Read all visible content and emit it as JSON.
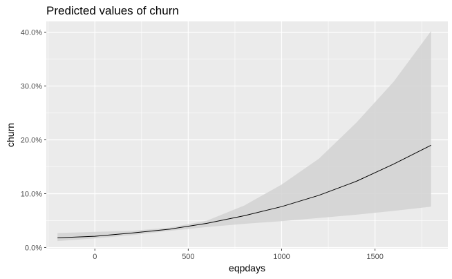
{
  "chart_data": {
    "type": "line",
    "title": "Predicted values of churn",
    "xlabel": "eqpdays",
    "ylabel": "churn",
    "xlim": [
      -260,
      1890
    ],
    "ylim": [
      -0.002,
      0.42
    ],
    "x_ticks": [
      0,
      500,
      1000,
      1500
    ],
    "x_tick_labels": [
      "0",
      "500",
      "1000",
      "1500"
    ],
    "y_ticks": [
      0.0,
      0.1,
      0.2,
      0.3,
      0.4
    ],
    "y_tick_labels": [
      "0.0%",
      "10.0%",
      "20.0%",
      "30.0%",
      "40.0%"
    ],
    "grid": true,
    "series": [
      {
        "x": [
          -200,
          0,
          200,
          400,
          600,
          800,
          1000,
          1200,
          1400,
          1600,
          1800
        ],
        "values": [
          0.018,
          0.021,
          0.027,
          0.034,
          0.045,
          0.059,
          0.076,
          0.097,
          0.123,
          0.155,
          0.19
        ],
        "lower": [
          0.012,
          0.017,
          0.023,
          0.031,
          0.038,
          0.044,
          0.049,
          0.055,
          0.061,
          0.068,
          0.076
        ],
        "upper": [
          0.027,
          0.029,
          0.031,
          0.037,
          0.05,
          0.078,
          0.117,
          0.165,
          0.232,
          0.308,
          0.402
        ],
        "line_color": "#000000",
        "band_color": "#d2d2d2"
      }
    ],
    "panel_background": "#ebebeb",
    "grid_color": "#ffffff"
  }
}
